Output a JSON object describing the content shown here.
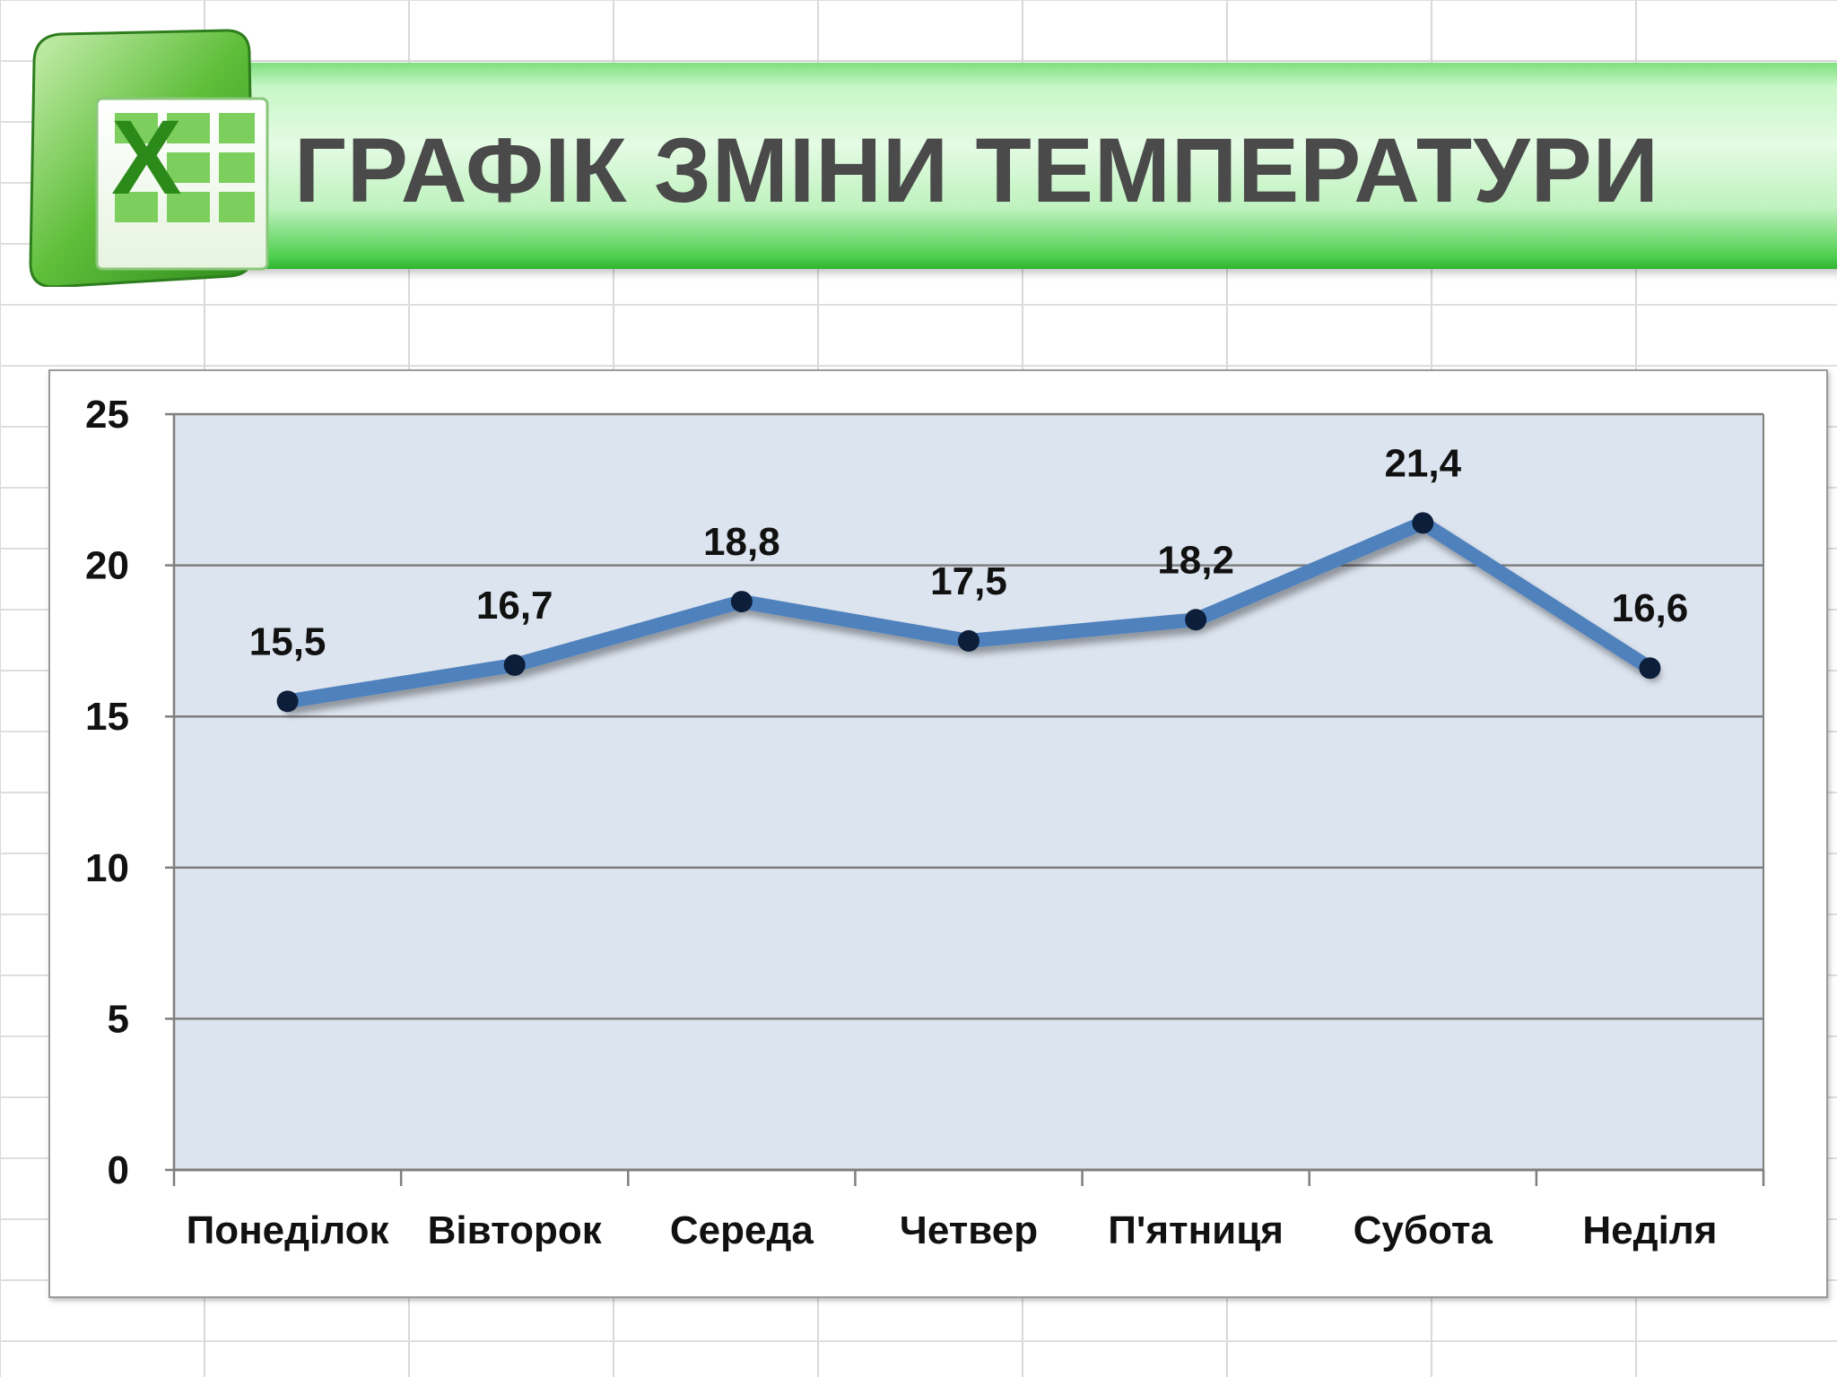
{
  "title": "ГРАФІК ЗМІНИ ТЕМПЕРАТУРИ",
  "logo": {
    "icon": "excel-logo-icon",
    "letter": "X"
  },
  "colors": {
    "banner": "#4fcf4f",
    "plot_area": "#dce4ef",
    "line": "#4f81bd",
    "marker": "#0d1e3a",
    "gridline": "#7f7f7f"
  },
  "chart_data": {
    "type": "line",
    "categories": [
      "Понеділок",
      "Вівторок",
      "Середа",
      "Четвер",
      "П'ятниця",
      "Субота",
      "Неділя"
    ],
    "series": [
      {
        "values": [
          15.5,
          16.7,
          18.8,
          17.5,
          18.2,
          21.4,
          16.6
        ]
      }
    ],
    "data_labels": [
      "15,5",
      "16,7",
      "18,8",
      "17,5",
      "18,2",
      "21,4",
      "16,6"
    ],
    "y_ticks": [
      "0",
      "5",
      "10",
      "15",
      "20",
      "25"
    ],
    "ylim": [
      0,
      25
    ],
    "grid": true,
    "legend": "none",
    "title": "",
    "xlabel": "",
    "ylabel": ""
  }
}
